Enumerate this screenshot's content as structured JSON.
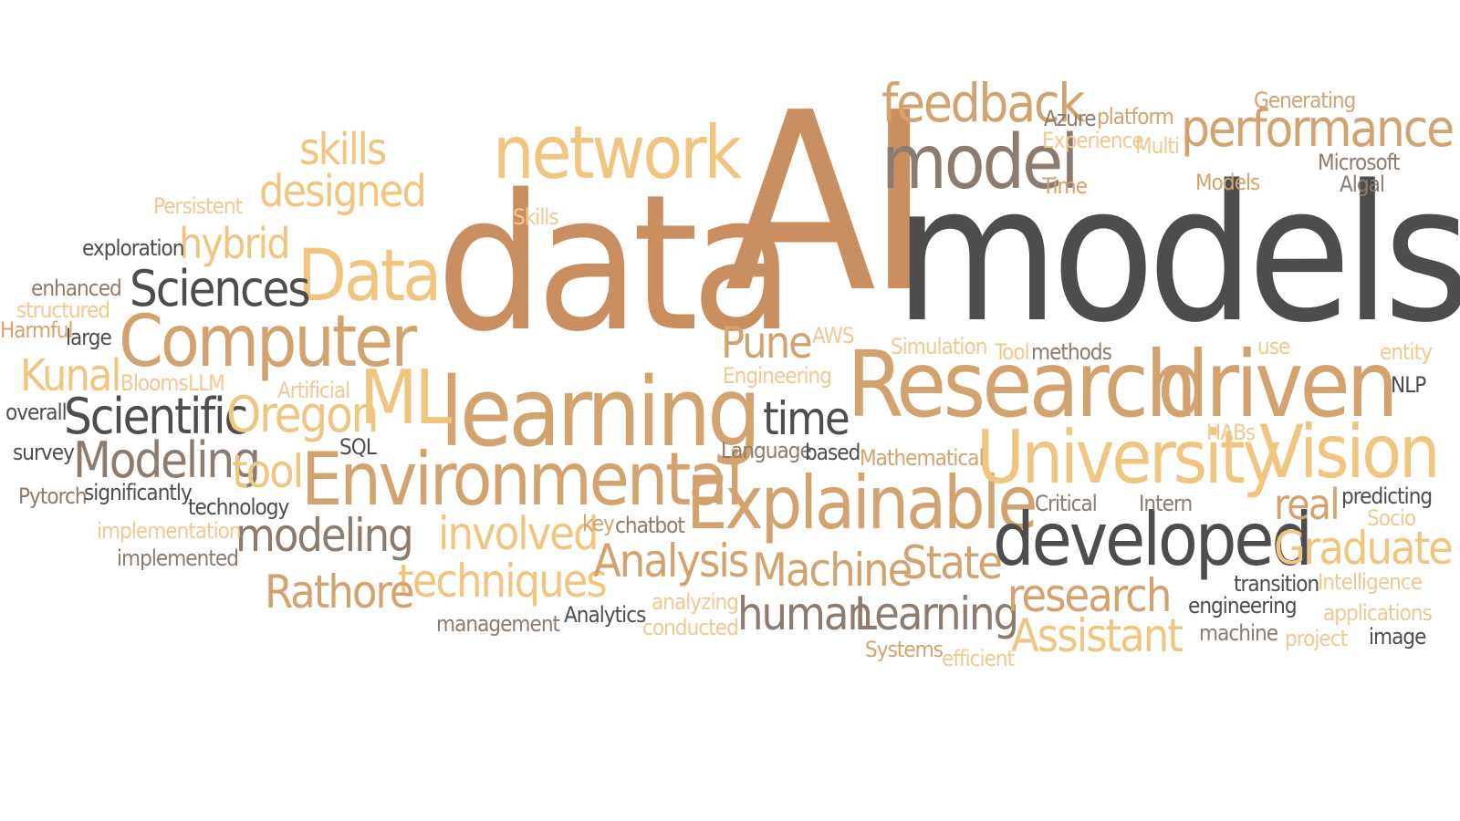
{
  "palette": {
    "dark": "#4d4d4d",
    "gray": "#6e6258",
    "taupe": "#8c7b6e",
    "rust": "#c98f60",
    "tan": "#d3a36f",
    "gold": "#f0c57f",
    "sand": "#efc892"
  },
  "words": [
    {
      "key": "ai",
      "text": "AI",
      "color": "rust"
    },
    {
      "key": "models",
      "text": "models",
      "color": "dark"
    },
    {
      "key": "data",
      "text": "data",
      "color": "rust"
    },
    {
      "key": "research_big",
      "text": "Research",
      "color": "tan"
    },
    {
      "key": "driven",
      "text": "driven",
      "color": "tan"
    },
    {
      "key": "learning",
      "text": "learning",
      "color": "tan"
    },
    {
      "key": "network",
      "text": "network",
      "color": "gold"
    },
    {
      "key": "model",
      "text": "model",
      "color": "taupe"
    },
    {
      "key": "feedback",
      "text": "feedback",
      "color": "tan"
    },
    {
      "key": "performance",
      "text": "performance",
      "color": "tan"
    },
    {
      "key": "environmental",
      "text": "Environmental",
      "color": "tan"
    },
    {
      "key": "explainable",
      "text": "Explainable",
      "color": "tan"
    },
    {
      "key": "university",
      "text": "University",
      "color": "gold"
    },
    {
      "key": "vision",
      "text": "Vision",
      "color": "gold"
    },
    {
      "key": "developed",
      "text": "developed",
      "color": "dark"
    },
    {
      "key": "computer",
      "text": "Computer",
      "color": "tan"
    },
    {
      "key": "data_word",
      "text": "Data",
      "color": "gold"
    },
    {
      "key": "sciences",
      "text": "Sciences",
      "color": "dark"
    },
    {
      "key": "ml",
      "text": "ML",
      "color": "gold"
    },
    {
      "key": "scientific",
      "text": "Scientific",
      "color": "dark"
    },
    {
      "key": "oregon",
      "text": "Oregon",
      "color": "gold"
    },
    {
      "key": "modeling_cap",
      "text": "Modeling",
      "color": "taupe"
    },
    {
      "key": "tool",
      "text": "tool",
      "color": "gold"
    },
    {
      "key": "modeling",
      "text": "modeling",
      "color": "taupe"
    },
    {
      "key": "involved",
      "text": "involved",
      "color": "gold"
    },
    {
      "key": "techniques",
      "text": "techniques",
      "color": "gold"
    },
    {
      "key": "rathore",
      "text": "Rathore",
      "color": "tan"
    },
    {
      "key": "analysis",
      "text": "Analysis",
      "color": "tan"
    },
    {
      "key": "machine_cap",
      "text": "Machine",
      "color": "tan"
    },
    {
      "key": "state",
      "text": "State",
      "color": "tan"
    },
    {
      "key": "human",
      "text": "human",
      "color": "taupe"
    },
    {
      "key": "learning_cap",
      "text": "Learning",
      "color": "taupe"
    },
    {
      "key": "research",
      "text": "research",
      "color": "tan"
    },
    {
      "key": "assistant",
      "text": "Assistant",
      "color": "gold"
    },
    {
      "key": "graduate",
      "text": "Graduate",
      "color": "gold"
    },
    {
      "key": "real",
      "text": "real",
      "color": "tan"
    },
    {
      "key": "time_mid",
      "text": "time",
      "color": "dark"
    },
    {
      "key": "pune",
      "text": "Pune",
      "color": "tan"
    },
    {
      "key": "skills",
      "text": "skills",
      "color": "gold"
    },
    {
      "key": "designed",
      "text": "designed",
      "color": "gold"
    },
    {
      "key": "hybrid",
      "text": "hybrid",
      "color": "gold"
    },
    {
      "key": "kunal",
      "text": "Kunal",
      "color": "gold"
    },
    {
      "key": "persistent",
      "text": "Persistent",
      "color": "sand"
    },
    {
      "key": "exploration",
      "text": "exploration",
      "color": "dark"
    },
    {
      "key": "enhanced",
      "text": "enhanced",
      "color": "taupe"
    },
    {
      "key": "structured",
      "text": "structured",
      "color": "sand"
    },
    {
      "key": "harmful",
      "text": "Harmful",
      "color": "tan"
    },
    {
      "key": "large",
      "text": "large",
      "color": "dark"
    },
    {
      "key": "blooms",
      "text": "Blooms",
      "color": "sand"
    },
    {
      "key": "llm",
      "text": "LLM",
      "color": "sand"
    },
    {
      "key": "artificial",
      "text": "Artificial",
      "color": "sand"
    },
    {
      "key": "overall",
      "text": "overall",
      "color": "dark"
    },
    {
      "key": "survey",
      "text": "survey",
      "color": "dark"
    },
    {
      "key": "sql",
      "text": "SQL",
      "color": "dark"
    },
    {
      "key": "pytorch",
      "text": "Pytorch",
      "color": "taupe"
    },
    {
      "key": "significantly",
      "text": "significantly",
      "color": "dark"
    },
    {
      "key": "technology",
      "text": "technology",
      "color": "dark"
    },
    {
      "key": "implementation",
      "text": "implementation",
      "color": "sand"
    },
    {
      "key": "implemented",
      "text": "implemented",
      "color": "taupe"
    },
    {
      "key": "key",
      "text": "key",
      "color": "tan"
    },
    {
      "key": "chatbot",
      "text": "chatbot",
      "color": "taupe"
    },
    {
      "key": "analytics",
      "text": "Analytics",
      "color": "dark"
    },
    {
      "key": "management",
      "text": "management",
      "color": "taupe"
    },
    {
      "key": "analyzing",
      "text": "analyzing",
      "color": "sand"
    },
    {
      "key": "conducted",
      "text": "conducted",
      "color": "sand"
    },
    {
      "key": "skills_small",
      "text": "Skills",
      "color": "sand"
    },
    {
      "key": "aws",
      "text": "AWS",
      "color": "sand"
    },
    {
      "key": "engineering_cap",
      "text": "Engineering",
      "color": "sand"
    },
    {
      "key": "language",
      "text": "Language",
      "color": "taupe"
    },
    {
      "key": "based",
      "text": "based",
      "color": "dark"
    },
    {
      "key": "mathematical",
      "text": "Mathematical",
      "color": "tan"
    },
    {
      "key": "simulation",
      "text": "Simulation",
      "color": "sand"
    },
    {
      "key": "tool_cap",
      "text": "Tool",
      "color": "sand"
    },
    {
      "key": "methods",
      "text": "methods",
      "color": "taupe"
    },
    {
      "key": "use",
      "text": "use",
      "color": "sand"
    },
    {
      "key": "entity",
      "text": "entity",
      "color": "sand"
    },
    {
      "key": "nlp",
      "text": "NLP",
      "color": "dark"
    },
    {
      "key": "habs",
      "text": "HABs",
      "color": "sand"
    },
    {
      "key": "critical",
      "text": "Critical",
      "color": "taupe"
    },
    {
      "key": "intern",
      "text": "Intern",
      "color": "taupe"
    },
    {
      "key": "predicting",
      "text": "predicting",
      "color": "dark"
    },
    {
      "key": "socio",
      "text": "Socio",
      "color": "sand"
    },
    {
      "key": "transition",
      "text": "transition",
      "color": "dark"
    },
    {
      "key": "intelligence",
      "text": "Intelligence",
      "color": "sand"
    },
    {
      "key": "engineering",
      "text": "engineering",
      "color": "dark"
    },
    {
      "key": "applications",
      "text": "applications",
      "color": "sand"
    },
    {
      "key": "machine",
      "text": "machine",
      "color": "taupe"
    },
    {
      "key": "project",
      "text": "project",
      "color": "sand"
    },
    {
      "key": "image",
      "text": "image",
      "color": "dark"
    },
    {
      "key": "systems",
      "text": "Systems",
      "color": "tan"
    },
    {
      "key": "efficient",
      "text": "efficient",
      "color": "sand"
    },
    {
      "key": "azure",
      "text": "Azure",
      "color": "taupe"
    },
    {
      "key": "platform",
      "text": "platform",
      "color": "tan"
    },
    {
      "key": "experience",
      "text": "Experience",
      "color": "sand"
    },
    {
      "key": "multi",
      "text": "Multi",
      "color": "sand"
    },
    {
      "key": "time_small",
      "text": "Time",
      "color": "tan"
    },
    {
      "key": "generating",
      "text": "Generating",
      "color": "tan"
    },
    {
      "key": "microsoft",
      "text": "Microsoft",
      "color": "taupe"
    },
    {
      "key": "algal",
      "text": "Algal",
      "color": "taupe"
    },
    {
      "key": "models_cap",
      "text": "Models",
      "color": "tan"
    }
  ]
}
